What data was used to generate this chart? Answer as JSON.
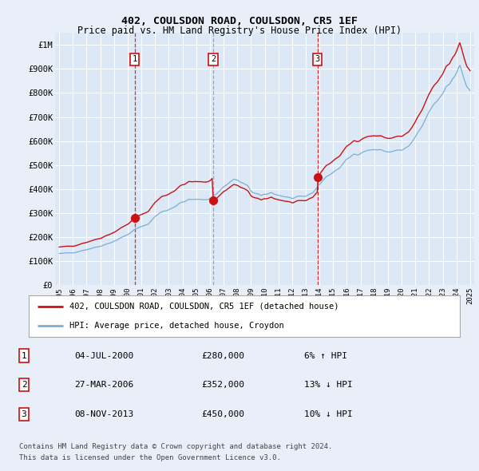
{
  "title1": "402, COULSDON ROAD, COULSDON, CR5 1EF",
  "title2": "Price paid vs. HM Land Registry's House Price Index (HPI)",
  "ylabel_ticks": [
    "£0",
    "£100K",
    "£200K",
    "£300K",
    "£400K",
    "£500K",
    "£600K",
    "£700K",
    "£800K",
    "£900K",
    "£1M"
  ],
  "ytick_vals": [
    0,
    100000,
    200000,
    300000,
    400000,
    500000,
    600000,
    700000,
    800000,
    900000,
    1000000
  ],
  "ylim": [
    0,
    1050000
  ],
  "background_color": "#e8eff8",
  "plot_bg": "#dce8f5",
  "grid_color": "#ffffff",
  "sale_prices": [
    280000,
    352000,
    450000
  ],
  "sale_labels": [
    "1",
    "2",
    "3"
  ],
  "hpi_line_color": "#7bafd4",
  "price_line_color": "#cc1111",
  "legend_label1": "402, COULSDON ROAD, COULSDON, CR5 1EF (detached house)",
  "legend_label2": "HPI: Average price, detached house, Croydon",
  "table_rows": [
    [
      "1",
      "04-JUL-2000",
      "£280,000",
      "6% ↑ HPI"
    ],
    [
      "2",
      "27-MAR-2006",
      "£352,000",
      "13% ↓ HPI"
    ],
    [
      "3",
      "08-NOV-2013",
      "£450,000",
      "10% ↓ HPI"
    ]
  ],
  "footer1": "Contains HM Land Registry data © Crown copyright and database right 2024.",
  "footer2": "This data is licensed under the Open Government Licence v3.0.",
  "xstart_year": 1995,
  "xend_year": 2025
}
